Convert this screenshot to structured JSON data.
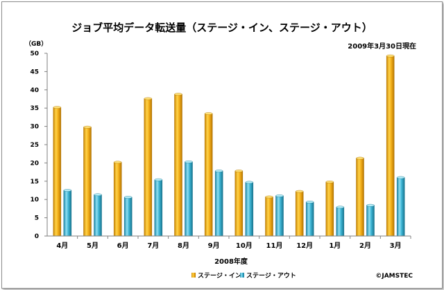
{
  "chart_data": {
    "type": "bar",
    "title": "ジョブ平均データ転送量（ステージ・イン、ステージ・アウト）",
    "date_note": "2009年3月30日現在",
    "ylabel": "（GB）",
    "xlabel": "2008年度",
    "credit": "©JAMSTEC",
    "ylim": [
      0,
      50
    ],
    "yticks": [
      0,
      5,
      10,
      15,
      20,
      25,
      30,
      35,
      40,
      45,
      50
    ],
    "legend_position": "bottom",
    "grid": false,
    "categories": [
      "4月",
      "5月",
      "6月",
      "7月",
      "8月",
      "9月",
      "10月",
      "11月",
      "12月",
      "1月",
      "2月",
      "3月"
    ],
    "series": [
      {
        "name": "ステージ・イン",
        "color": "#f5b21c",
        "values": [
          35.2,
          29.8,
          20.2,
          37.6,
          38.8,
          33.5,
          17.8,
          10.7,
          12.2,
          14.8,
          21.3,
          49.3
        ]
      },
      {
        "name": "ステージ・アウト",
        "color": "#3fb6d6",
        "values": [
          12.5,
          11.3,
          10.6,
          15.4,
          20.3,
          17.8,
          14.7,
          11.0,
          9.3,
          7.9,
          8.4,
          16.0
        ]
      }
    ]
  }
}
